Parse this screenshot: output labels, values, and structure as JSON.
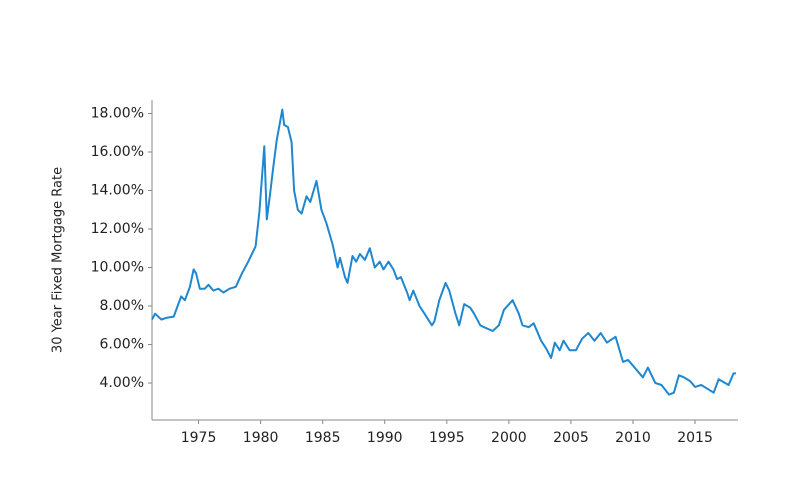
{
  "chart_data": {
    "type": "line",
    "y_label": "30 Year Fixed Mortgage Rate",
    "color": "#1f87d0",
    "x": [
      1971.25,
      1971.5,
      1972,
      1972.5,
      1973,
      1973.6,
      1973.9,
      1974.3,
      1974.6,
      1974.8,
      1975.1,
      1975.5,
      1975.8,
      1976.2,
      1976.6,
      1977,
      1977.5,
      1978,
      1978.5,
      1979,
      1979.6,
      1979.9,
      1980.3,
      1980.5,
      1980.8,
      1981,
      1981.3,
      1981.75,
      1981.9,
      1982.2,
      1982.5,
      1982.7,
      1983,
      1983.3,
      1983.7,
      1984,
      1984.5,
      1984.9,
      1985.3,
      1985.8,
      1986.2,
      1986.4,
      1986.8,
      1987,
      1987.4,
      1987.7,
      1988,
      1988.4,
      1988.8,
      1989.2,
      1989.6,
      1989.9,
      1990.3,
      1990.7,
      1991,
      1991.3,
      1991.8,
      1992,
      1992.3,
      1992.8,
      1993.2,
      1993.8,
      1994,
      1994.4,
      1994.9,
      1995.2,
      1995.7,
      1996,
      1996.4,
      1996.9,
      1997.2,
      1997.7,
      1998,
      1998.7,
      1999.2,
      1999.6,
      2000.3,
      2000.8,
      2001.1,
      2001.6,
      2002,
      2002.6,
      2003,
      2003.4,
      2003.7,
      2004.1,
      2004.4,
      2004.9,
      2005.4,
      2005.9,
      2006.4,
      2006.9,
      2007.4,
      2007.9,
      2008.6,
      2009.2,
      2009.6,
      2010,
      2010.8,
      2011.2,
      2011.8,
      2012.3,
      2012.9,
      2013.3,
      2013.7,
      2014.1,
      2014.6,
      2015,
      2015.5,
      2016,
      2016.5,
      2016.9,
      2017.7,
      2018.1,
      2018.3
    ],
    "values": [
      7.3,
      7.6,
      7.3,
      7.4,
      7.45,
      8.5,
      8.3,
      9.0,
      9.9,
      9.7,
      8.9,
      8.9,
      9.1,
      8.8,
      8.9,
      8.7,
      8.9,
      9.0,
      9.7,
      10.3,
      11.1,
      12.9,
      16.3,
      12.5,
      14.0,
      15.1,
      16.6,
      18.2,
      17.4,
      17.3,
      16.5,
      14.0,
      13.0,
      12.8,
      13.7,
      13.4,
      14.5,
      13.0,
      12.3,
      11.2,
      10.0,
      10.5,
      9.5,
      9.2,
      10.6,
      10.3,
      10.7,
      10.4,
      11.0,
      10.0,
      10.3,
      9.9,
      10.3,
      9.9,
      9.4,
      9.5,
      8.7,
      8.3,
      8.8,
      8.0,
      7.6,
      7.0,
      7.2,
      8.3,
      9.2,
      8.8,
      7.6,
      7.0,
      8.1,
      7.9,
      7.6,
      7.0,
      6.9,
      6.7,
      7.0,
      7.8,
      8.3,
      7.6,
      7.0,
      6.9,
      7.1,
      6.2,
      5.8,
      5.3,
      6.1,
      5.7,
      6.2,
      5.7,
      5.7,
      6.3,
      6.6,
      6.2,
      6.6,
      6.1,
      6.4,
      5.1,
      5.2,
      4.9,
      4.3,
      4.8,
      4.0,
      3.9,
      3.4,
      3.5,
      4.4,
      4.3,
      4.1,
      3.8,
      3.9,
      3.7,
      3.5,
      4.2,
      3.9,
      4.5,
      4.5
    ],
    "xlim": [
      1971.25,
      2018.3
    ],
    "xticks": [
      1975,
      1980,
      1985,
      1990,
      1995,
      2000,
      2005,
      2010,
      2015
    ],
    "ylim": [
      2.08,
      18.7
    ],
    "yticks": [
      {
        "value": 4,
        "label": "4.00%"
      },
      {
        "value": 6,
        "label": "6.00%"
      },
      {
        "value": 8,
        "label": "8.00%"
      },
      {
        "value": 10,
        "label": "10.00%"
      },
      {
        "value": 12,
        "label": "12.00%"
      },
      {
        "value": 14,
        "label": "14.00%"
      },
      {
        "value": 16,
        "label": "16.00%"
      },
      {
        "value": 18,
        "label": "18.00%"
      }
    ]
  }
}
